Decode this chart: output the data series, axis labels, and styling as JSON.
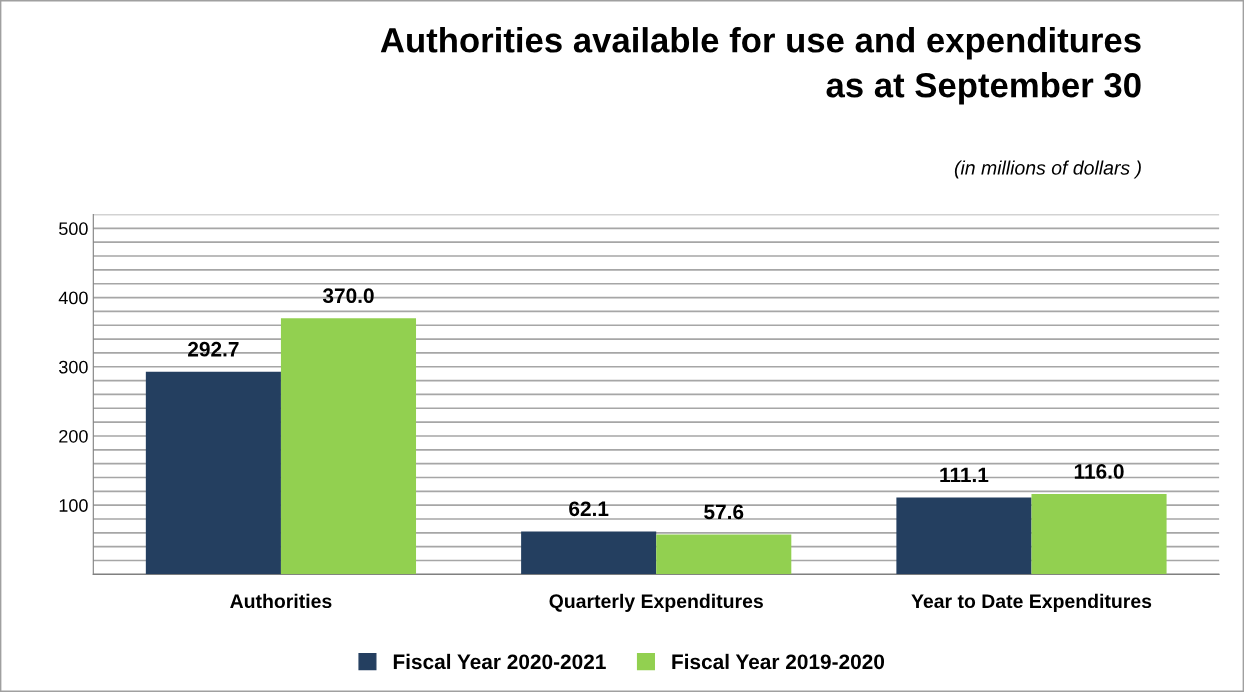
{
  "chart_data": {
    "type": "bar",
    "title": "Authorities available for use and expenditures\nas at September 30",
    "subtitle": "(in millions of dollars )",
    "categories": [
      "Authorities",
      "Quarterly Expenditures",
      "Year to Date Expenditures"
    ],
    "series": [
      {
        "name": "Fiscal Year 2020-2021",
        "color": "#243f60",
        "values": [
          292.7,
          62.1,
          111.1
        ],
        "value_labels": [
          "292.7",
          "62.1",
          "111.1"
        ]
      },
      {
        "name": "Fiscal Year 2019-2020",
        "color": "#92d050",
        "values": [
          370.0,
          57.6,
          116.0
        ],
        "value_labels": [
          "370.0",
          "57.6",
          "116.0"
        ]
      }
    ],
    "ylim": [
      0,
      520
    ],
    "yticks": [
      {
        "value": 0,
        "label": null
      },
      {
        "value": 20,
        "label": null
      },
      {
        "value": 40,
        "label": null
      },
      {
        "value": 60,
        "label": null
      },
      {
        "value": 80,
        "label": null
      },
      100,
      {
        "value": 120,
        "label": null
      },
      {
        "value": 140,
        "label": null
      },
      {
        "value": 160,
        "label": null
      },
      {
        "value": 180,
        "label": null
      },
      200,
      {
        "value": 220,
        "label": null
      },
      {
        "value": 240,
        "label": null
      },
      {
        "value": 260,
        "label": null
      },
      {
        "value": 280,
        "label": null
      },
      300,
      {
        "value": 320,
        "label": null
      },
      {
        "value": 340,
        "label": null
      },
      {
        "value": 360,
        "label": null
      },
      {
        "value": 380,
        "label": null
      },
      400,
      {
        "value": 420,
        "label": null
      },
      {
        "value": 440,
        "label": null
      },
      {
        "value": 460,
        "label": null
      },
      {
        "value": 480,
        "label": null
      },
      500,
      {
        "value": 520,
        "label": null
      }
    ],
    "grid": "y",
    "legend": "bottom"
  }
}
